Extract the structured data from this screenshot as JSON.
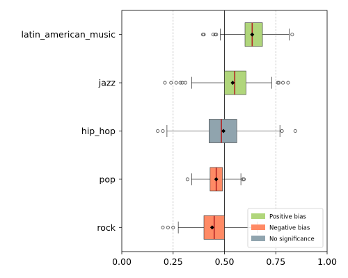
{
  "chart_data": {
    "type": "boxplot",
    "orientation": "horizontal",
    "title": "",
    "xlabel": "",
    "ylabel": "",
    "xlim": [
      0.0,
      1.0
    ],
    "x_ticks": [
      0.0,
      0.25,
      0.5,
      0.75,
      1.0
    ],
    "x_tick_labels": [
      "0.00",
      "0.25",
      "0.50",
      "0.75",
      "1.00"
    ],
    "vertical_gridlines": [
      0.25,
      0.75
    ],
    "reference_line": 0.5,
    "categories": [
      "latin_american_music",
      "jazz",
      "hip_hop",
      "pop",
      "rock"
    ],
    "boxes": [
      {
        "category": "latin_american_music",
        "group": "Positive bias",
        "whisker_low": 0.48,
        "q1": 0.6,
        "median": 0.635,
        "q3": 0.685,
        "whisker_high": 0.815,
        "mean": 0.635,
        "outliers": [
          0.395,
          0.4,
          0.445,
          0.455,
          0.46,
          0.83
        ]
      },
      {
        "category": "jazz",
        "group": "Positive bias",
        "whisker_low": 0.34,
        "q1": 0.5,
        "median": 0.55,
        "q3": 0.605,
        "whisker_high": 0.73,
        "mean": 0.54,
        "outliers": [
          0.21,
          0.24,
          0.265,
          0.285,
          0.295,
          0.31,
          0.76,
          0.765,
          0.785,
          0.81
        ]
      },
      {
        "category": "hip_hop",
        "group": "No significance",
        "whisker_low": 0.22,
        "q1": 0.425,
        "median": 0.485,
        "q3": 0.56,
        "whisker_high": 0.77,
        "mean": 0.495,
        "outliers": [
          0.175,
          0.2,
          0.78,
          0.845
        ]
      },
      {
        "category": "pop",
        "group": "Negative bias",
        "whisker_low": 0.34,
        "q1": 0.43,
        "median": 0.46,
        "q3": 0.49,
        "whisker_high": 0.58,
        "mean": 0.46,
        "outliers": [
          0.32,
          0.59,
          0.595
        ]
      },
      {
        "category": "rock",
        "group": "Negative bias",
        "whisker_low": 0.275,
        "q1": 0.4,
        "median": 0.45,
        "q3": 0.5,
        "whisker_high": 0.66,
        "mean": 0.44,
        "outliers": [
          0.2,
          0.225,
          0.25
        ]
      }
    ],
    "legend": {
      "position": "lower right",
      "entries": [
        {
          "label": "Positive bias",
          "color": "#b0d67b"
        },
        {
          "label": "Negative bias",
          "color": "#ff8a65"
        },
        {
          "label": "No significance",
          "color": "#90a4ae"
        }
      ]
    },
    "grid": "dashed vertical at 0.25 and 0.75",
    "colors": {
      "Positive bias": "#b0d67b",
      "Negative bias": "#ff8a65",
      "No significance": "#90a4ae",
      "median": "#b22222",
      "mean_marker": "#000000",
      "outlier": "#555555"
    }
  }
}
